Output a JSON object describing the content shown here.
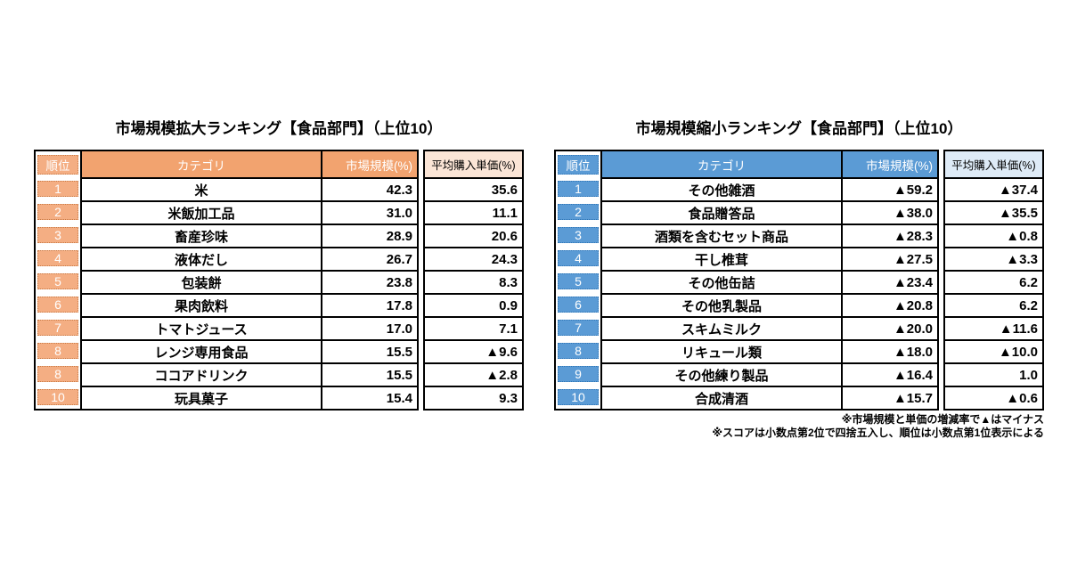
{
  "footnotes": [
    "※市場規模と単価の増減率で▲はマイナス",
    "※スコアは小数点第2位で四捨五入し、順位は小数点第1位表示による"
  ],
  "chart_data": [
    {
      "type": "table",
      "title": "市場規模拡大ランキング【食品部門】（上位10）",
      "columns": [
        "順位",
        "カテゴリ",
        "市場規模(%)",
        "平均購入単価(%)"
      ],
      "rows": [
        [
          "1",
          "米",
          "42.3",
          "35.6"
        ],
        [
          "2",
          "米飯加工品",
          "31.0",
          "11.1"
        ],
        [
          "3",
          "畜産珍味",
          "28.9",
          "20.6"
        ],
        [
          "4",
          "液体だし",
          "26.7",
          "24.3"
        ],
        [
          "5",
          "包装餅",
          "23.8",
          "8.3"
        ],
        [
          "6",
          "果肉飲料",
          "17.8",
          "0.9"
        ],
        [
          "7",
          "トマトジュース",
          "17.0",
          "7.1"
        ],
        [
          "8",
          "レンジ専用食品",
          "15.5",
          "▲9.6"
        ],
        [
          "8",
          "ココアドリンク",
          "15.5",
          "▲2.8"
        ],
        [
          "10",
          "玩具菓子",
          "15.4",
          "9.3"
        ]
      ],
      "theme": {
        "header_bg": "#F2A36F",
        "header_text": "#FFFFFF",
        "rank_bg": "#F4AE83",
        "rank_border": "#C97A45",
        "avg_header_bg": "#FBE5D6",
        "grid": "#000000"
      }
    },
    {
      "type": "table",
      "title": "市場規模縮小ランキング【食品部門】（上位10）",
      "columns": [
        "順位",
        "カテゴリ",
        "市場規模(%)",
        "平均購入単価(%)"
      ],
      "rows": [
        [
          "1",
          "その他雑酒",
          "▲59.2",
          "▲37.4"
        ],
        [
          "2",
          "食品贈答品",
          "▲38.0",
          "▲35.5"
        ],
        [
          "3",
          "酒類を含むセット商品",
          "▲28.3",
          "▲0.8"
        ],
        [
          "4",
          "干し椎茸",
          "▲27.5",
          "▲3.3"
        ],
        [
          "5",
          "その他缶詰",
          "▲23.4",
          "6.2"
        ],
        [
          "6",
          "その他乳製品",
          "▲20.8",
          "6.2"
        ],
        [
          "7",
          "スキムミルク",
          "▲20.0",
          "▲11.6"
        ],
        [
          "8",
          "リキュール類",
          "▲18.0",
          "▲10.0"
        ],
        [
          "9",
          "その他練り製品",
          "▲16.4",
          "1.0"
        ],
        [
          "10",
          "合成清酒",
          "▲15.7",
          "▲0.6"
        ]
      ],
      "theme": {
        "header_bg": "#5B9BD5",
        "header_text": "#FFFFFF",
        "rank_bg": "#5B9BD5",
        "rank_border": "#2E75B6",
        "avg_header_bg": "#DEEBF7",
        "grid": "#000000"
      }
    }
  ]
}
